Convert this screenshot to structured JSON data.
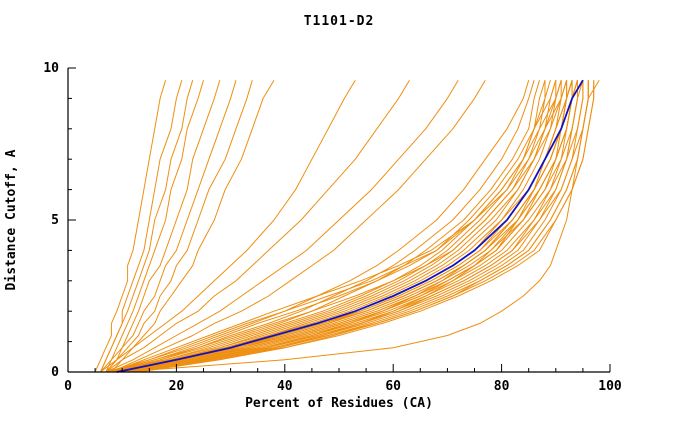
{
  "chart_data": {
    "type": "line",
    "title": "T1101-D2",
    "xlabel": "Percent of Residues (CA)",
    "ylabel": "Distance Cutoff, A",
    "xlim": [
      0,
      100
    ],
    "ylim": [
      0,
      10
    ],
    "xticks": [
      0,
      20,
      40,
      60,
      80,
      100
    ],
    "x_minor_step": 5,
    "yticks": [
      0,
      5,
      10
    ],
    "y_minor_step": 1,
    "grid": "off",
    "legend": "none",
    "colors": {
      "orange": "#EE8F11",
      "blue": "#1212BE",
      "axis": "#000000",
      "background": "#FFFFFF"
    },
    "y_grid": [
      0,
      0.4,
      0.8,
      1.2,
      1.6,
      2,
      2.5,
      3,
      3.5,
      4,
      5,
      6,
      7,
      8,
      9,
      9.6
    ],
    "blue_curve": [
      9,
      20,
      30,
      38,
      46,
      53,
      60,
      66,
      71,
      75,
      81,
      85,
      88,
      91,
      93,
      95
    ],
    "orange_curves": [
      [
        7,
        15,
        22,
        28,
        34,
        40,
        46,
        52,
        57,
        61,
        68,
        73,
        77,
        81,
        84,
        85
      ],
      [
        8,
        16,
        24,
        30,
        37,
        43,
        49,
        55,
        60,
        64,
        71,
        76,
        80,
        83,
        85,
        86
      ],
      [
        8,
        17,
        25,
        32,
        39,
        45,
        51,
        57,
        62,
        66,
        73,
        78,
        82,
        85,
        86,
        87
      ],
      [
        8,
        18,
        26,
        33,
        40,
        47,
        54,
        60,
        65,
        69,
        75,
        80,
        84,
        86,
        87,
        88
      ],
      [
        9,
        18,
        27,
        34,
        41,
        48,
        55,
        61,
        66,
        70,
        76,
        81,
        84,
        86,
        88,
        88
      ],
      [
        9,
        19,
        28,
        35,
        42,
        49,
        56,
        62,
        67,
        71,
        77,
        82,
        85,
        87,
        88,
        89
      ],
      [
        9,
        19,
        28,
        36,
        43,
        50,
        57,
        63,
        68,
        72,
        78,
        83,
        86,
        88,
        89,
        90
      ],
      [
        10,
        20,
        29,
        37,
        44,
        51,
        58,
        64,
        69,
        73,
        79,
        83,
        86,
        88,
        90,
        90
      ],
      [
        10,
        20,
        29,
        37,
        45,
        52,
        59,
        65,
        70,
        74,
        80,
        84,
        87,
        89,
        90,
        91
      ],
      [
        10,
        21,
        30,
        38,
        46,
        53,
        60,
        66,
        71,
        75,
        80,
        85,
        88,
        90,
        91,
        91
      ],
      [
        9,
        21,
        31,
        39,
        47,
        54,
        61,
        67,
        72,
        76,
        82,
        86,
        89,
        91,
        92,
        92
      ],
      [
        10,
        22,
        32,
        40,
        48,
        55,
        62,
        68,
        73,
        77,
        83,
        87,
        90,
        91,
        92,
        92
      ],
      [
        10,
        22,
        32,
        41,
        49,
        56,
        63,
        69,
        74,
        78,
        84,
        88,
        90,
        92,
        93,
        93
      ],
      [
        11,
        23,
        33,
        42,
        50,
        57,
        64,
        70,
        75,
        79,
        84,
        88,
        91,
        92,
        93,
        93
      ],
      [
        11,
        23,
        34,
        43,
        51,
        58,
        65,
        71,
        76,
        80,
        85,
        89,
        91,
        93,
        94,
        94
      ],
      [
        11,
        24,
        35,
        44,
        52,
        59,
        66,
        72,
        77,
        81,
        86,
        90,
        92,
        93,
        94,
        94
      ],
      [
        12,
        25,
        36,
        45,
        53,
        60,
        67,
        73,
        78,
        82,
        87,
        90,
        92,
        94,
        95,
        95
      ],
      [
        12,
        25,
        37,
        46,
        54,
        61,
        68,
        74,
        79,
        83,
        87,
        91,
        93,
        94,
        95,
        95
      ],
      [
        12,
        26,
        38,
        47,
        55,
        62,
        69,
        75,
        80,
        84,
        88,
        91,
        93,
        95,
        96,
        96
      ],
      [
        13,
        27,
        39,
        48,
        56,
        63,
        70,
        76,
        81,
        85,
        89,
        92,
        94,
        95,
        96,
        96
      ],
      [
        13,
        28,
        40,
        49,
        57,
        64,
        71,
        77,
        82,
        86,
        90,
        93,
        95,
        96,
        97,
        97
      ],
      [
        8,
        14,
        20,
        26,
        32,
        38,
        46,
        54,
        61,
        67,
        75,
        81,
        85,
        88,
        91,
        92
      ],
      [
        10,
        26,
        38,
        47,
        54,
        60,
        66,
        71,
        75,
        78,
        83,
        86,
        89,
        91,
        92,
        93
      ],
      [
        9,
        24,
        36,
        45,
        52,
        58,
        64,
        69,
        73,
        77,
        82,
        86,
        88,
        90,
        92,
        93
      ],
      [
        8,
        16,
        23,
        29,
        35,
        42,
        50,
        57,
        63,
        68,
        75,
        80,
        84,
        87,
        90,
        91
      ],
      [
        9,
        17,
        24,
        31,
        38,
        45,
        53,
        60,
        66,
        71,
        77,
        82,
        86,
        89,
        91,
        92
      ],
      [
        10,
        23,
        34,
        43,
        51,
        58,
        65,
        70,
        75,
        79,
        84,
        87,
        90,
        92,
        93,
        94
      ],
      [
        11,
        24,
        36,
        46,
        54,
        61,
        67,
        73,
        78,
        82,
        86,
        89,
        92,
        93,
        94,
        95
      ],
      [
        8,
        15,
        21,
        27,
        33,
        40,
        48,
        56,
        62,
        68,
        74,
        79,
        83,
        86,
        89,
        90
      ],
      [
        12,
        26,
        38,
        48,
        57,
        64,
        71,
        76,
        81,
        85,
        89,
        92,
        94,
        95,
        96,
        96
      ],
      [
        10,
        21,
        31,
        40,
        48,
        55,
        62,
        68,
        73,
        77,
        82,
        86,
        89,
        91,
        93,
        94
      ],
      [
        9,
        19,
        29,
        38,
        46,
        54,
        61,
        67,
        72,
        76,
        81,
        85,
        88,
        90,
        92,
        93
      ],
      [
        11,
        22,
        33,
        42,
        50,
        57,
        64,
        70,
        75,
        79,
        83,
        87,
        90,
        92,
        93,
        94
      ],
      [
        10,
        20,
        30,
        39,
        47,
        55,
        62,
        68,
        73,
        77,
        82,
        86,
        89,
        91,
        92,
        93
      ],
      [
        13,
        27,
        40,
        50,
        58,
        65,
        72,
        78,
        83,
        87,
        90,
        93,
        95,
        96,
        97,
        97
      ],
      [
        5,
        6,
        7,
        8,
        8,
        9,
        10,
        11,
        11,
        12,
        13,
        14,
        15,
        16,
        17,
        18
      ],
      [
        6,
        7,
        8,
        9,
        10,
        10,
        11,
        12,
        13,
        14,
        15,
        16,
        17,
        19,
        20,
        21
      ],
      [
        6,
        7,
        8,
        9,
        10,
        11,
        12,
        13,
        14,
        15,
        16,
        18,
        19,
        21,
        22,
        23
      ],
      [
        6,
        8,
        9,
        10,
        11,
        12,
        13,
        14,
        15,
        16,
        18,
        19,
        21,
        22,
        24,
        25
      ],
      [
        7,
        8,
        10,
        11,
        12,
        13,
        14,
        15,
        17,
        18,
        20,
        22,
        23,
        25,
        27,
        28
      ],
      [
        7,
        9,
        10,
        12,
        13,
        14,
        16,
        17,
        18,
        20,
        22,
        24,
        26,
        28,
        30,
        31
      ],
      [
        7,
        9,
        11,
        13,
        14,
        16,
        17,
        19,
        20,
        22,
        24,
        26,
        29,
        31,
        33,
        34
      ],
      [
        8,
        10,
        12,
        14,
        16,
        17,
        19,
        21,
        23,
        24,
        27,
        29,
        32,
        34,
        36,
        38
      ],
      [
        6,
        9,
        12,
        15,
        18,
        21,
        24,
        27,
        30,
        33,
        38,
        42,
        45,
        48,
        51,
        53
      ],
      [
        7,
        10,
        14,
        17,
        20,
        24,
        27,
        31,
        34,
        37,
        43,
        48,
        53,
        57,
        61,
        63
      ],
      [
        7,
        12,
        16,
        20,
        24,
        28,
        32,
        36,
        40,
        44,
        50,
        56,
        61,
        66,
        70,
        72
      ],
      [
        8,
        13,
        18,
        23,
        27,
        32,
        37,
        41,
        45,
        49,
        55,
        61,
        66,
        71,
        75,
        77
      ],
      [
        10,
        40,
        60,
        70,
        76,
        80,
        84,
        87,
        89,
        90,
        92,
        93,
        94,
        95,
        96,
        98
      ]
    ]
  }
}
